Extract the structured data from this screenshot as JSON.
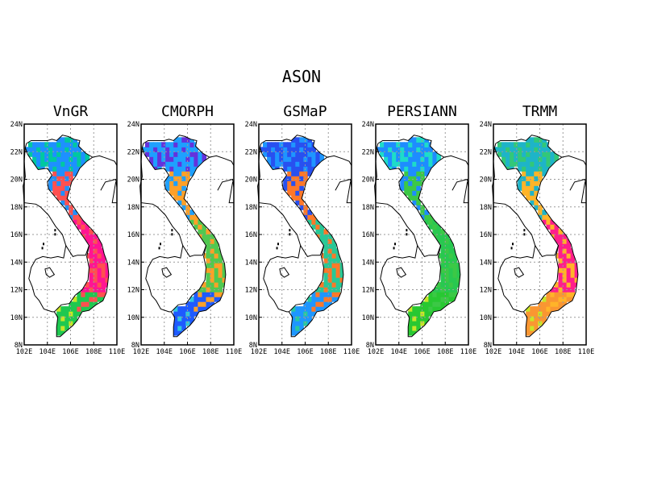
{
  "figure": {
    "title": "ASON",
    "x_tick_labels": [
      "102E",
      "104E",
      "106E",
      "108E",
      "110E"
    ],
    "y_tick_labels": [
      "24N",
      "22N",
      "20N",
      "18N",
      "16N",
      "14N",
      "12N",
      "10N",
      "8N"
    ],
    "lon_range": [
      102,
      110
    ],
    "lat_range": [
      8,
      24
    ]
  },
  "panels": [
    {
      "title": "VnGR",
      "scheme": {
        "north": "#1e90ff",
        "north_alt": "#00c8a0",
        "center": "#ff1493",
        "center_alt": "#ff5050",
        "south": "#1ec850",
        "south_alt": "#c8e628"
      }
    },
    {
      "title": "CMORPH",
      "scheme": {
        "north": "#1ea0ff",
        "north_alt": "#6432dc",
        "center": "#50c850",
        "center_alt": "#ffa028",
        "south": "#1e5aff",
        "south_alt": "#32c8dc"
      }
    },
    {
      "title": "GSMaP",
      "scheme": {
        "north": "#2850f0",
        "north_alt": "#1e96ff",
        "center": "#28c896",
        "center_alt": "#ff7828",
        "south": "#1e96ff",
        "south_alt": "#28c8a0"
      }
    },
    {
      "title": "PERSIANN",
      "scheme": {
        "north": "#1e8cff",
        "north_alt": "#1edcc8",
        "center": "#28c850",
        "center_alt": "#3cc846",
        "south": "#28c832",
        "south_alt": "#c8e628"
      }
    },
    {
      "title": "TRMM",
      "scheme": {
        "north": "#1eb4c8",
        "north_alt": "#32c878",
        "center": "#ff1e8c",
        "center_alt": "#ffb428",
        "south": "#fa9632",
        "south_alt": "#c8e628"
      }
    }
  ]
}
